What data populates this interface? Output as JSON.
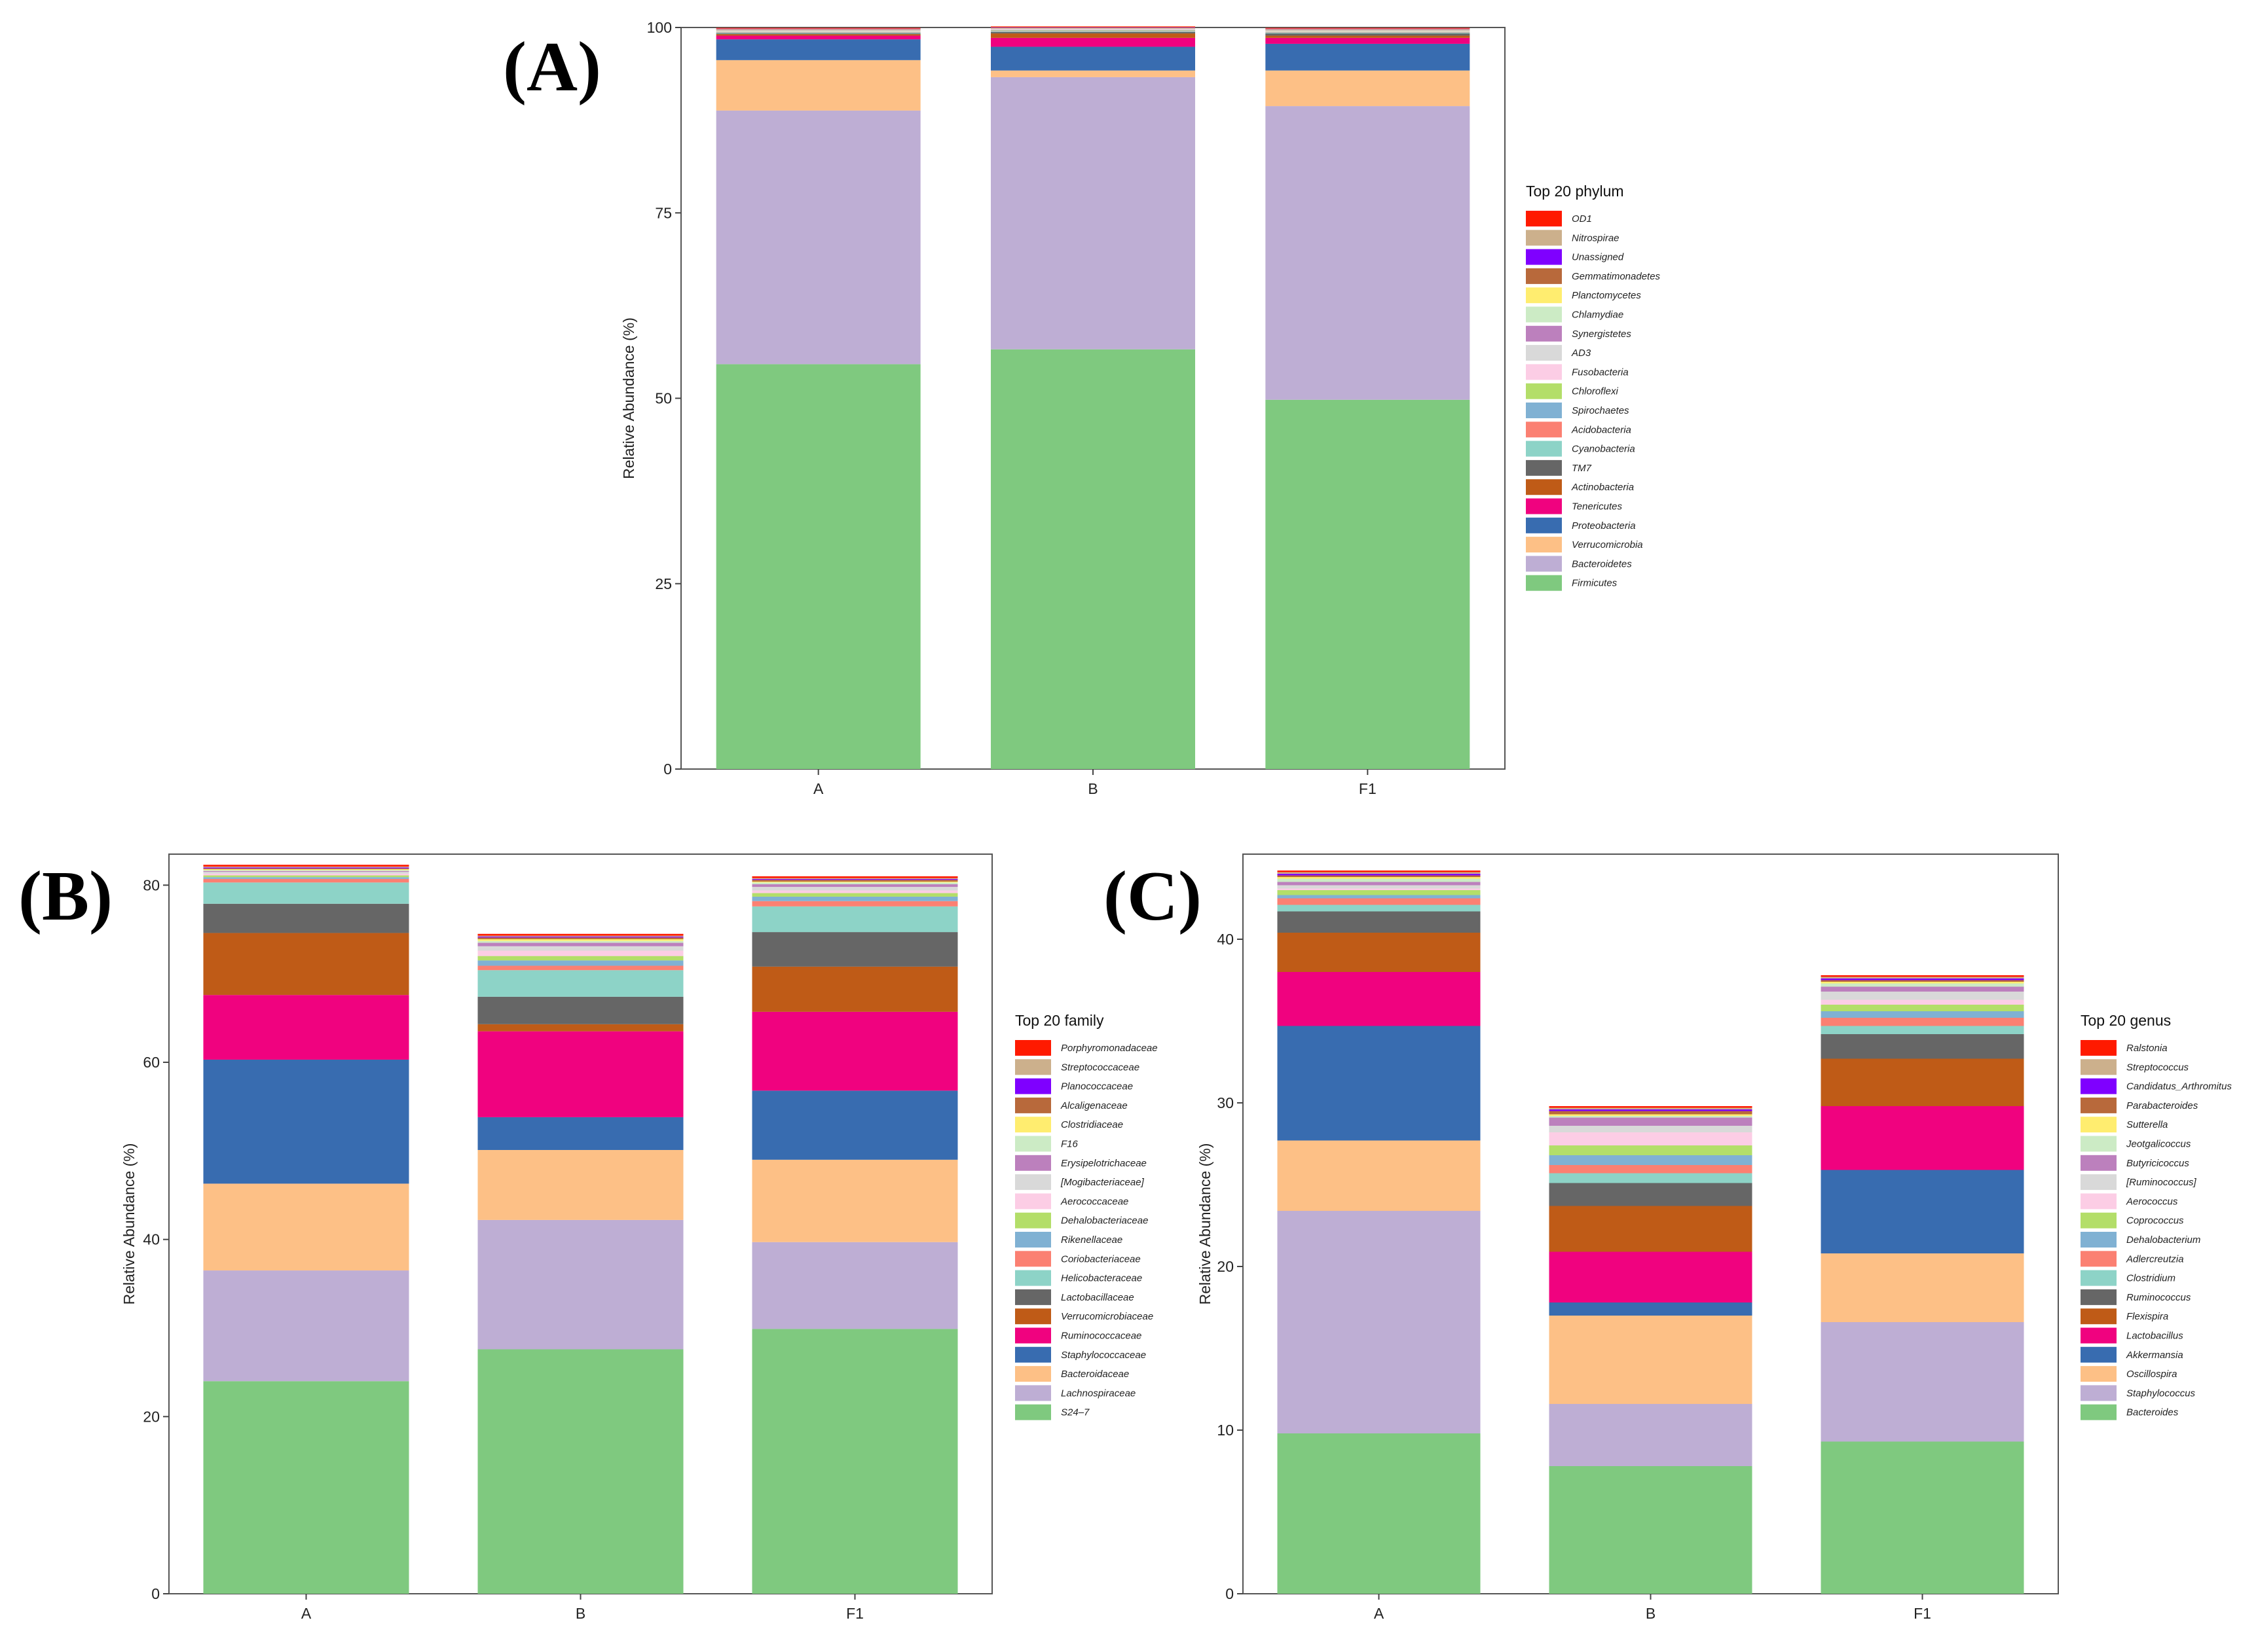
{
  "chart_data": [
    {
      "type": "bar",
      "stacked": true,
      "panel_label": "(A)",
      "ylabel": "Relative Abundance (%)",
      "ylim": [
        0,
        100
      ],
      "yticks": [
        0,
        25,
        50,
        75,
        100
      ],
      "categories": [
        "A",
        "B",
        "F1"
      ],
      "legend_title": "Top 20 phylum",
      "legend_position": "right",
      "series": [
        {
          "name": "Firmicutes",
          "color": "#7FC97F",
          "values": [
            54.6,
            56.6,
            49.8
          ]
        },
        {
          "name": "Bacteroidetes",
          "color": "#BEAED4",
          "values": [
            34.2,
            36.7,
            39.6
          ]
        },
        {
          "name": "Verrucomicrobia",
          "color": "#FDC086",
          "values": [
            6.8,
            0.9,
            4.8
          ]
        },
        {
          "name": "Proteobacteria",
          "color": "#386CB0",
          "values": [
            2.8,
            3.2,
            3.6
          ]
        },
        {
          "name": "Tenericutes",
          "color": "#F0027F",
          "values": [
            0.5,
            1.2,
            0.8
          ]
        },
        {
          "name": "Actinobacteria",
          "color": "#BF5B17",
          "values": [
            0.2,
            0.6,
            0.3
          ]
        },
        {
          "name": "TM7",
          "color": "#666666",
          "values": [
            0.1,
            0.2,
            0.3
          ]
        },
        {
          "name": "Cyanobacteria",
          "color": "#8DD3C7",
          "values": [
            0.1,
            0.1,
            0.1
          ]
        },
        {
          "name": "Acidobacteria",
          "color": "#FB8072",
          "values": [
            0.05,
            0.05,
            0.05
          ]
        },
        {
          "name": "Spirochaetes",
          "color": "#80B1D3",
          "values": [
            0.05,
            0.05,
            0.05
          ]
        },
        {
          "name": "Chloroflexi",
          "color": "#B3DE69",
          "values": [
            0.05,
            0.05,
            0.05
          ]
        },
        {
          "name": "Fusobacteria",
          "color": "#FCCDE5",
          "values": [
            0.05,
            0.05,
            0.05
          ]
        },
        {
          "name": "AD3",
          "color": "#D9D9D9",
          "values": [
            0.05,
            0.05,
            0.05
          ]
        },
        {
          "name": "Synergistetes",
          "color": "#BC80BD",
          "values": [
            0.05,
            0.05,
            0.05
          ]
        },
        {
          "name": "Chlamydiae",
          "color": "#CCEBC5",
          "values": [
            0.05,
            0.05,
            0.05
          ]
        },
        {
          "name": "Planctomycetes",
          "color": "#FFED6F",
          "values": [
            0.05,
            0.05,
            0.05
          ]
        },
        {
          "name": "Gemmatimonadetes",
          "color": "#B8693B",
          "values": [
            0.05,
            0.05,
            0.05
          ]
        },
        {
          "name": "Unassigned",
          "color": "#7F00FF",
          "values": [
            0.05,
            0.05,
            0.05
          ]
        },
        {
          "name": "Nitrospirae",
          "color": "#CCB08C",
          "values": [
            0.05,
            0.05,
            0.05
          ]
        },
        {
          "name": "OD1",
          "color": "#FF1A00",
          "values": [
            0.1,
            0.1,
            0.1
          ]
        }
      ]
    },
    {
      "type": "bar",
      "stacked": true,
      "panel_label": "(B)",
      "ylabel": "Relative Abundance (%)",
      "ylim": [
        0,
        83.5
      ],
      "yticks": [
        0,
        20,
        40,
        60,
        80
      ],
      "categories": [
        "A",
        "B",
        "F1"
      ],
      "legend_title": "Top 20 family",
      "legend_position": "right",
      "series": [
        {
          "name": "S24–7",
          "color": "#7FC97F",
          "values": [
            24.0,
            27.6,
            29.9
          ]
        },
        {
          "name": "Lachnospiraceae",
          "color": "#BEAED4",
          "values": [
            12.5,
            14.6,
            9.8
          ]
        },
        {
          "name": "Bacteroidaceae",
          "color": "#FDC086",
          "values": [
            9.8,
            7.9,
            9.3
          ]
        },
        {
          "name": "Staphylococcaceae",
          "color": "#386CB0",
          "values": [
            14.0,
            3.7,
            7.8
          ]
        },
        {
          "name": "Ruminococcaceae",
          "color": "#F0027F",
          "values": [
            7.3,
            9.7,
            8.9
          ]
        },
        {
          "name": "Verrucomicrobiaceae",
          "color": "#BF5B17",
          "values": [
            7.0,
            0.8,
            5.1
          ]
        },
        {
          "name": "Lactobacillaceae",
          "color": "#666666",
          "values": [
            3.3,
            3.1,
            3.9
          ]
        },
        {
          "name": "Helicobacteraceae",
          "color": "#8DD3C7",
          "values": [
            2.4,
            3.0,
            2.9
          ]
        },
        {
          "name": "Coriobacteriaceae",
          "color": "#FB8072",
          "values": [
            0.4,
            0.5,
            0.6
          ]
        },
        {
          "name": "Rikenellaceae",
          "color": "#80B1D3",
          "values": [
            0.2,
            0.6,
            0.5
          ]
        },
        {
          "name": "Dehalobacteriaceae",
          "color": "#B3DE69",
          "values": [
            0.2,
            0.5,
            0.4
          ]
        },
        {
          "name": "Aerococcaceae",
          "color": "#FCCDE5",
          "values": [
            0.2,
            0.6,
            0.3
          ]
        },
        {
          "name": "[Mogibacteriaceae]",
          "color": "#D9D9D9",
          "values": [
            0.2,
            0.5,
            0.4
          ]
        },
        {
          "name": "Erysipelotrichaceae",
          "color": "#BC80BD",
          "values": [
            0.1,
            0.4,
            0.3
          ]
        },
        {
          "name": "F16",
          "color": "#CCEBC5",
          "values": [
            0.1,
            0.2,
            0.2
          ]
        },
        {
          "name": "Clostridiaceae",
          "color": "#FFED6F",
          "values": [
            0.1,
            0.2,
            0.1
          ]
        },
        {
          "name": "Alcaligenaceae",
          "color": "#B8693B",
          "values": [
            0.1,
            0.2,
            0.2
          ]
        },
        {
          "name": "Planococcaceae",
          "color": "#7F00FF",
          "values": [
            0.1,
            0.1,
            0.1
          ]
        },
        {
          "name": "Streptococcaceae",
          "color": "#CCB08C",
          "values": [
            0.1,
            0.1,
            0.1
          ]
        },
        {
          "name": "Porphyromonadaceae",
          "color": "#FF1A00",
          "values": [
            0.2,
            0.2,
            0.2
          ]
        }
      ]
    },
    {
      "type": "bar",
      "stacked": true,
      "panel_label": "(C)",
      "ylabel": "Relative Abundance (%)",
      "ylim": [
        0,
        45.2
      ],
      "yticks": [
        0,
        10,
        20,
        30,
        40
      ],
      "categories": [
        "A",
        "B",
        "F1"
      ],
      "legend_title": "Top 20 genus",
      "legend_position": "right",
      "series": [
        {
          "name": "Bacteroides",
          "color": "#7FC97F",
          "values": [
            9.8,
            7.8,
            9.3
          ]
        },
        {
          "name": "Staphylococcus",
          "color": "#BEAED4",
          "values": [
            13.6,
            3.8,
            7.3
          ]
        },
        {
          "name": "Oscillospira",
          "color": "#FDC086",
          "values": [
            4.3,
            5.4,
            4.2
          ]
        },
        {
          "name": "Akkermansia",
          "color": "#386CB0",
          "values": [
            7.0,
            0.8,
            5.1
          ]
        },
        {
          "name": "Lactobacillus",
          "color": "#F0027F",
          "values": [
            3.3,
            3.1,
            3.9
          ]
        },
        {
          "name": "Flexispira",
          "color": "#BF5B17",
          "values": [
            2.4,
            2.8,
            2.9
          ]
        },
        {
          "name": "Ruminococcus",
          "color": "#666666",
          "values": [
            1.3,
            1.4,
            1.5
          ]
        },
        {
          "name": "Clostridium",
          "color": "#8DD3C7",
          "values": [
            0.4,
            0.6,
            0.5
          ]
        },
        {
          "name": "Adlercreutzia",
          "color": "#FB8072",
          "values": [
            0.4,
            0.5,
            0.5
          ]
        },
        {
          "name": "Dehalobacterium",
          "color": "#80B1D3",
          "values": [
            0.2,
            0.6,
            0.4
          ]
        },
        {
          "name": "Coprococcus",
          "color": "#B3DE69",
          "values": [
            0.3,
            0.6,
            0.4
          ]
        },
        {
          "name": "Aerococcus",
          "color": "#FCCDE5",
          "values": [
            0.1,
            0.8,
            0.3
          ]
        },
        {
          "name": "[Ruminococcus]",
          "color": "#D9D9D9",
          "values": [
            0.2,
            0.4,
            0.5
          ]
        },
        {
          "name": "Butyricicoccus",
          "color": "#BC80BD",
          "values": [
            0.2,
            0.5,
            0.3
          ]
        },
        {
          "name": "Jeotgalicoccus",
          "color": "#CCEBC5",
          "values": [
            0.2,
            0.1,
            0.2
          ]
        },
        {
          "name": "Sutterella",
          "color": "#FFED6F",
          "values": [
            0.1,
            0.1,
            0.1
          ]
        },
        {
          "name": "Parabacteroides",
          "color": "#B8693B",
          "values": [
            0.1,
            0.2,
            0.1
          ]
        },
        {
          "name": "Candidatus_Arthromitus",
          "color": "#7F00FF",
          "values": [
            0.1,
            0.1,
            0.1
          ]
        },
        {
          "name": "Streptococcus",
          "color": "#CCB08C",
          "values": [
            0.1,
            0.1,
            0.1
          ]
        },
        {
          "name": "Ralstonia",
          "color": "#FF1A00",
          "values": [
            0.1,
            0.1,
            0.1
          ]
        }
      ]
    }
  ]
}
